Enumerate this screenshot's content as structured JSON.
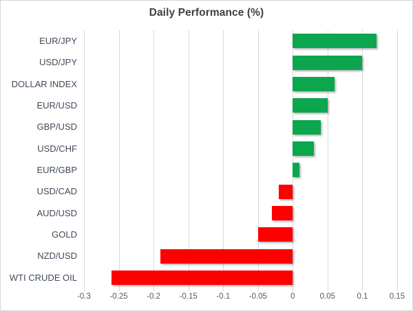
{
  "chart_data": {
    "type": "bar",
    "orientation": "horizontal",
    "title": "Daily Performance (%)",
    "categories": [
      "EUR/JPY",
      "USD/JPY",
      "DOLLAR INDEX",
      "EUR/USD",
      "GBP/USD",
      "USD/CHF",
      "EUR/GBP",
      "USD/CAD",
      "AUD/USD",
      "GOLD",
      "NZD/USD",
      "WTI CRUDE OIL"
    ],
    "values": [
      0.12,
      0.1,
      0.06,
      0.05,
      0.04,
      0.03,
      0.01,
      -0.02,
      -0.03,
      -0.05,
      -0.19,
      -0.26
    ],
    "xlim": [
      -0.3,
      0.15
    ],
    "xticks": [
      -0.3,
      -0.25,
      -0.2,
      -0.15,
      -0.1,
      -0.05,
      0,
      0.05,
      0.1,
      0.15
    ],
    "xtick_labels": [
      "-0.3",
      "-0.25",
      "-0.2",
      "-0.15",
      "-0.1",
      "-0.05",
      "0",
      "0.05",
      "0.1",
      "0.15"
    ],
    "grid": true,
    "legend": false,
    "colors": {
      "positive": "#0CA64F",
      "negative": "#FF0000",
      "gridline": "#D9D9D9",
      "title_text": "#404040",
      "category_text": "#3F4A5A",
      "tick_text": "#595959"
    }
  }
}
